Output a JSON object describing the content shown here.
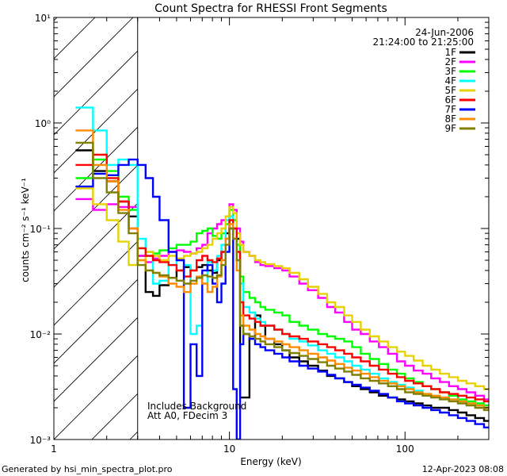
{
  "chart_data": {
    "type": "line",
    "title": "Count Spectra for RHESSI Front Segments",
    "xlabel": "Energy (keV)",
    "ylabel": "counts cm⁻² s⁻¹ keV⁻¹",
    "x_scale": "log",
    "y_scale": "log",
    "xlim": [
      1,
      300
    ],
    "ylim": [
      0.001,
      10
    ],
    "x_ticks": [
      {
        "value": 1,
        "label": "1"
      },
      {
        "value": 10,
        "label": "10"
      },
      {
        "value": 100,
        "label": "100"
      }
    ],
    "y_ticks": [
      {
        "value": 10,
        "label": "10¹"
      },
      {
        "value": 1,
        "label": "10⁰"
      },
      {
        "value": 0.1,
        "label": "10⁻¹"
      },
      {
        "value": 0.01,
        "label": "10⁻²"
      },
      {
        "value": 0.001,
        "label": "10⁻³"
      }
    ],
    "header": {
      "date": "24-Jun-2006",
      "time_range": "21:24:00 to 21:25:00"
    },
    "excluded_region": {
      "x_from": 1,
      "x_to": 3,
      "style": "hatched"
    },
    "annotations": [
      "Includes Background",
      "Att A0, FDecim 3"
    ],
    "legend_position": "top-right",
    "footer_left": "Generated by hsi_min_spectra_plot.pro",
    "footer_right": "12-Apr-2023 08:08",
    "series": [
      {
        "name": "1F",
        "color": "#000000",
        "x": [
          1.33,
          1.67,
          2.0,
          2.33,
          2.67,
          3.0,
          3.33,
          3.67,
          4.0,
          4.5,
          5.0,
          5.5,
          6.0,
          6.5,
          7.0,
          7.5,
          8.0,
          8.5,
          9.0,
          9.5,
          10.0,
          10.5,
          11.0,
          11.5,
          12.0,
          13.0,
          14.0,
          15.0,
          16.0,
          18.0,
          20.0,
          22.0,
          25.0,
          28.0,
          32.0,
          36.0,
          40.0,
          45.0,
          50.0,
          56.0,
          63.0,
          71.0,
          80.0,
          90.0,
          100.0,
          112.0,
          126.0,
          141.0,
          158.0,
          178.0,
          200.0,
          224.0,
          251.0,
          282.0
        ],
        "y": [
          0.55,
          0.35,
          0.28,
          0.18,
          0.13,
          0.055,
          0.025,
          0.023,
          0.029,
          0.034,
          0.04,
          0.043,
          0.04,
          0.043,
          0.045,
          0.04,
          0.038,
          0.05,
          0.06,
          0.09,
          0.13,
          0.1,
          0.08,
          0.0025,
          0.0025,
          0.009,
          0.015,
          0.012,
          0.009,
          0.008,
          0.007,
          0.006,
          0.0055,
          0.005,
          0.0045,
          0.004,
          0.0038,
          0.0035,
          0.0032,
          0.003,
          0.0028,
          0.0026,
          0.0025,
          0.0024,
          0.0023,
          0.0022,
          0.0021,
          0.002,
          0.002,
          0.0019,
          0.0018,
          0.0017,
          0.0016,
          0.0015
        ]
      },
      {
        "name": "2F",
        "color": "#ff00ff",
        "x": [
          1.33,
          1.67,
          2.0,
          2.33,
          2.67,
          3.0,
          3.33,
          3.67,
          4.0,
          4.5,
          5.0,
          5.5,
          6.0,
          6.5,
          7.0,
          7.5,
          8.0,
          8.5,
          9.0,
          9.5,
          10.0,
          10.5,
          11.0,
          11.5,
          12.0,
          13.0,
          14.0,
          15.0,
          16.0,
          18.0,
          20.0,
          22.0,
          25.0,
          28.0,
          32.0,
          36.0,
          40.0,
          45.0,
          50.0,
          56.0,
          63.0,
          71.0,
          80.0,
          90.0,
          100.0,
          112.0,
          126.0,
          141.0,
          158.0,
          178.0,
          200.0,
          224.0,
          251.0,
          282.0
        ],
        "y": [
          0.19,
          0.15,
          0.17,
          0.16,
          0.16,
          0.055,
          0.048,
          0.052,
          0.055,
          0.06,
          0.062,
          0.06,
          0.058,
          0.065,
          0.07,
          0.09,
          0.1,
          0.11,
          0.12,
          0.13,
          0.17,
          0.15,
          0.1,
          0.075,
          0.06,
          0.055,
          0.048,
          0.045,
          0.044,
          0.042,
          0.04,
          0.035,
          0.03,
          0.026,
          0.022,
          0.018,
          0.016,
          0.013,
          0.011,
          0.01,
          0.0085,
          0.0075,
          0.0065,
          0.0055,
          0.005,
          0.0045,
          0.0042,
          0.0038,
          0.0035,
          0.0032,
          0.003,
          0.0028,
          0.0026,
          0.0024
        ]
      },
      {
        "name": "3F",
        "color": "#00ff00",
        "x": [
          1.33,
          1.67,
          2.0,
          2.33,
          2.67,
          3.0,
          3.33,
          3.67,
          4.0,
          4.5,
          5.0,
          5.5,
          6.0,
          6.5,
          7.0,
          7.5,
          8.0,
          8.5,
          9.0,
          9.5,
          10.0,
          10.5,
          11.0,
          11.5,
          12.0,
          13.0,
          14.0,
          15.0,
          16.0,
          18.0,
          20.0,
          22.0,
          25.0,
          28.0,
          32.0,
          36.0,
          40.0,
          45.0,
          50.0,
          56.0,
          63.0,
          71.0,
          80.0,
          90.0,
          100.0,
          112.0,
          126.0,
          141.0,
          158.0,
          178.0,
          200.0,
          224.0,
          251.0,
          282.0
        ],
        "y": [
          0.3,
          0.45,
          0.35,
          0.2,
          0.15,
          0.065,
          0.06,
          0.058,
          0.062,
          0.065,
          0.07,
          0.07,
          0.075,
          0.09,
          0.095,
          0.1,
          0.085,
          0.08,
          0.09,
          0.11,
          0.15,
          0.12,
          0.07,
          0.035,
          0.025,
          0.022,
          0.02,
          0.018,
          0.017,
          0.016,
          0.015,
          0.013,
          0.012,
          0.011,
          0.01,
          0.0095,
          0.009,
          0.0085,
          0.0075,
          0.0065,
          0.0058,
          0.0052,
          0.0046,
          0.0042,
          0.0038,
          0.0035,
          0.0032,
          0.003,
          0.0028,
          0.0026,
          0.0024,
          0.0023,
          0.0022,
          0.0021
        ]
      },
      {
        "name": "4F",
        "color": "#00ffff",
        "x": [
          1.33,
          1.67,
          2.0,
          2.33,
          2.67,
          3.0,
          3.33,
          3.67,
          4.0,
          4.5,
          5.0,
          5.5,
          6.0,
          6.5,
          7.0,
          7.5,
          8.0,
          8.5,
          9.0,
          9.5,
          10.0,
          10.5,
          11.0,
          11.5,
          12.0,
          13.0,
          14.0,
          15.0,
          16.0,
          18.0,
          20.0,
          22.0,
          25.0,
          28.0,
          32.0,
          36.0,
          40.0,
          45.0,
          50.0,
          56.0,
          63.0,
          71.0,
          80.0,
          90.0,
          100.0,
          112.0,
          126.0,
          141.0,
          158.0,
          178.0,
          200.0,
          224.0,
          251.0,
          282.0
        ],
        "y": [
          1.4,
          0.85,
          0.4,
          0.45,
          0.4,
          0.08,
          0.055,
          0.03,
          0.032,
          0.045,
          0.05,
          0.045,
          0.01,
          0.012,
          0.03,
          0.048,
          0.04,
          0.055,
          0.07,
          0.12,
          0.13,
          0.1,
          0.06,
          0.03,
          0.018,
          0.016,
          0.014,
          0.013,
          0.012,
          0.011,
          0.01,
          0.009,
          0.0085,
          0.0078,
          0.007,
          0.0065,
          0.006,
          0.0055,
          0.005,
          0.0046,
          0.0042,
          0.0038,
          0.0035,
          0.0033,
          0.0031,
          0.0029,
          0.0027,
          0.0026,
          0.0025,
          0.0024,
          0.0023,
          0.0022,
          0.0021,
          0.002
        ]
      },
      {
        "name": "5F",
        "color": "#e6d200",
        "x": [
          1.33,
          1.67,
          2.0,
          2.33,
          2.67,
          3.0,
          3.33,
          3.67,
          4.0,
          4.5,
          5.0,
          5.5,
          6.0,
          6.5,
          7.0,
          7.5,
          8.0,
          8.5,
          9.0,
          9.5,
          10.0,
          10.5,
          11.0,
          11.5,
          12.0,
          13.0,
          14.0,
          15.0,
          16.0,
          18.0,
          20.0,
          22.0,
          25.0,
          28.0,
          32.0,
          36.0,
          40.0,
          45.0,
          50.0,
          56.0,
          63.0,
          71.0,
          80.0,
          90.0,
          100.0,
          112.0,
          126.0,
          141.0,
          158.0,
          178.0,
          200.0,
          224.0,
          251.0,
          282.0
        ],
        "y": [
          0.24,
          0.17,
          0.12,
          0.075,
          0.045,
          0.05,
          0.06,
          0.055,
          0.05,
          0.055,
          0.052,
          0.055,
          0.058,
          0.06,
          0.065,
          0.07,
          0.08,
          0.09,
          0.1,
          0.13,
          0.16,
          0.14,
          0.09,
          0.07,
          0.06,
          0.055,
          0.05,
          0.048,
          0.046,
          0.044,
          0.042,
          0.038,
          0.033,
          0.028,
          0.024,
          0.02,
          0.018,
          0.015,
          0.013,
          0.011,
          0.0095,
          0.0085,
          0.0075,
          0.0068,
          0.0062,
          0.0056,
          0.005,
          0.0046,
          0.0042,
          0.0039,
          0.0036,
          0.0034,
          0.0032,
          0.003
        ]
      },
      {
        "name": "6F",
        "color": "#ff0000",
        "x": [
          1.33,
          1.67,
          2.0,
          2.33,
          2.67,
          3.0,
          3.33,
          3.67,
          4.0,
          4.5,
          5.0,
          5.5,
          6.0,
          6.5,
          7.0,
          7.5,
          8.0,
          8.5,
          9.0,
          9.5,
          10.0,
          10.5,
          11.0,
          11.5,
          12.0,
          13.0,
          14.0,
          15.0,
          16.0,
          18.0,
          20.0,
          22.0,
          25.0,
          28.0,
          32.0,
          36.0,
          40.0,
          45.0,
          50.0,
          56.0,
          63.0,
          71.0,
          80.0,
          90.0,
          100.0,
          112.0,
          126.0,
          141.0,
          158.0,
          178.0,
          200.0,
          224.0,
          251.0,
          282.0
        ],
        "y": [
          0.4,
          0.5,
          0.3,
          0.18,
          0.1,
          0.065,
          0.055,
          0.05,
          0.048,
          0.045,
          0.04,
          0.035,
          0.04,
          0.05,
          0.055,
          0.05,
          0.048,
          0.052,
          0.06,
          0.08,
          0.12,
          0.1,
          0.06,
          0.02,
          0.015,
          0.014,
          0.013,
          0.012,
          0.012,
          0.011,
          0.01,
          0.0095,
          0.009,
          0.0085,
          0.008,
          0.0075,
          0.007,
          0.0065,
          0.006,
          0.0055,
          0.005,
          0.0046,
          0.0042,
          0.0039,
          0.0036,
          0.0034,
          0.0032,
          0.003,
          0.0028,
          0.0027,
          0.0026,
          0.0025,
          0.0024,
          0.0023
        ]
      },
      {
        "name": "7F",
        "color": "#0000ff",
        "x": [
          1.33,
          1.67,
          2.0,
          2.33,
          2.67,
          3.0,
          3.33,
          3.67,
          4.0,
          4.5,
          5.0,
          5.5,
          6.0,
          6.5,
          7.0,
          7.5,
          8.0,
          8.5,
          9.0,
          9.5,
          10.0,
          10.5,
          11.0,
          11.5,
          12.0,
          13.0,
          14.0,
          15.0,
          16.0,
          18.0,
          20.0,
          22.0,
          25.0,
          28.0,
          32.0,
          36.0,
          40.0,
          45.0,
          50.0,
          56.0,
          63.0,
          71.0,
          80.0,
          90.0,
          100.0,
          112.0,
          126.0,
          141.0,
          158.0,
          178.0,
          200.0,
          224.0,
          251.0,
          282.0
        ],
        "y": [
          0.25,
          0.33,
          0.32,
          0.4,
          0.45,
          0.4,
          0.3,
          0.2,
          0.12,
          0.06,
          0.05,
          0.002,
          0.008,
          0.004,
          0.04,
          0.045,
          0.03,
          0.02,
          0.03,
          0.06,
          0.1,
          0.003,
          0.001,
          0.008,
          0.01,
          0.009,
          0.008,
          0.0075,
          0.007,
          0.0065,
          0.006,
          0.0055,
          0.005,
          0.0047,
          0.0044,
          0.0041,
          0.0038,
          0.0035,
          0.0033,
          0.0031,
          0.0029,
          0.0027,
          0.0025,
          0.0023,
          0.0022,
          0.0021,
          0.002,
          0.0019,
          0.0018,
          0.0017,
          0.0016,
          0.0015,
          0.0014,
          0.0013
        ]
      },
      {
        "name": "8F",
        "color": "#ff8c00",
        "x": [
          1.33,
          1.67,
          2.0,
          2.33,
          2.67,
          3.0,
          3.33,
          3.67,
          4.0,
          4.5,
          5.0,
          5.5,
          6.0,
          6.5,
          7.0,
          7.5,
          8.0,
          8.5,
          9.0,
          9.5,
          10.0,
          10.5,
          11.0,
          11.5,
          12.0,
          13.0,
          14.0,
          15.0,
          16.0,
          18.0,
          20.0,
          22.0,
          25.0,
          28.0,
          32.0,
          36.0,
          40.0,
          45.0,
          50.0,
          56.0,
          63.0,
          71.0,
          80.0,
          90.0,
          100.0,
          112.0,
          126.0,
          141.0,
          158.0,
          178.0,
          200.0,
          224.0,
          251.0,
          282.0
        ],
        "y": [
          0.85,
          0.4,
          0.28,
          0.15,
          0.1,
          0.05,
          0.04,
          0.038,
          0.035,
          0.03,
          0.028,
          0.025,
          0.03,
          0.035,
          0.03,
          0.025,
          0.028,
          0.035,
          0.05,
          0.08,
          0.11,
          0.08,
          0.04,
          0.015,
          0.012,
          0.011,
          0.01,
          0.0095,
          0.009,
          0.0085,
          0.008,
          0.0075,
          0.007,
          0.0065,
          0.006,
          0.0056,
          0.0052,
          0.0048,
          0.0045,
          0.0042,
          0.0039,
          0.0036,
          0.0034,
          0.0032,
          0.003,
          0.0028,
          0.0027,
          0.0026,
          0.0025,
          0.0024,
          0.0023,
          0.0022,
          0.0021,
          0.002
        ]
      },
      {
        "name": "9F",
        "color": "#808000",
        "x": [
          1.33,
          1.67,
          2.0,
          2.33,
          2.67,
          3.0,
          3.33,
          3.67,
          4.0,
          4.5,
          5.0,
          5.5,
          6.0,
          6.5,
          7.0,
          7.5,
          8.0,
          8.5,
          9.0,
          9.5,
          10.0,
          10.5,
          11.0,
          11.5,
          12.0,
          13.0,
          14.0,
          15.0,
          16.0,
          18.0,
          20.0,
          22.0,
          25.0,
          28.0,
          32.0,
          36.0,
          40.0,
          45.0,
          50.0,
          56.0,
          63.0,
          71.0,
          80.0,
          90.0,
          100.0,
          112.0,
          126.0,
          141.0,
          158.0,
          178.0,
          200.0,
          224.0,
          251.0,
          282.0
        ],
        "y": [
          0.65,
          0.3,
          0.22,
          0.14,
          0.09,
          0.045,
          0.04,
          0.038,
          0.036,
          0.034,
          0.032,
          0.03,
          0.032,
          0.034,
          0.036,
          0.035,
          0.034,
          0.036,
          0.045,
          0.07,
          0.1,
          0.08,
          0.05,
          0.012,
          0.01,
          0.0095,
          0.009,
          0.0085,
          0.008,
          0.0075,
          0.007,
          0.0066,
          0.0062,
          0.0058,
          0.0054,
          0.005,
          0.0047,
          0.0044,
          0.0041,
          0.0038,
          0.0036,
          0.0034,
          0.0032,
          0.003,
          0.0028,
          0.0027,
          0.0026,
          0.0025,
          0.0024,
          0.0023,
          0.0022,
          0.0021,
          0.002,
          0.0019
        ]
      }
    ]
  }
}
